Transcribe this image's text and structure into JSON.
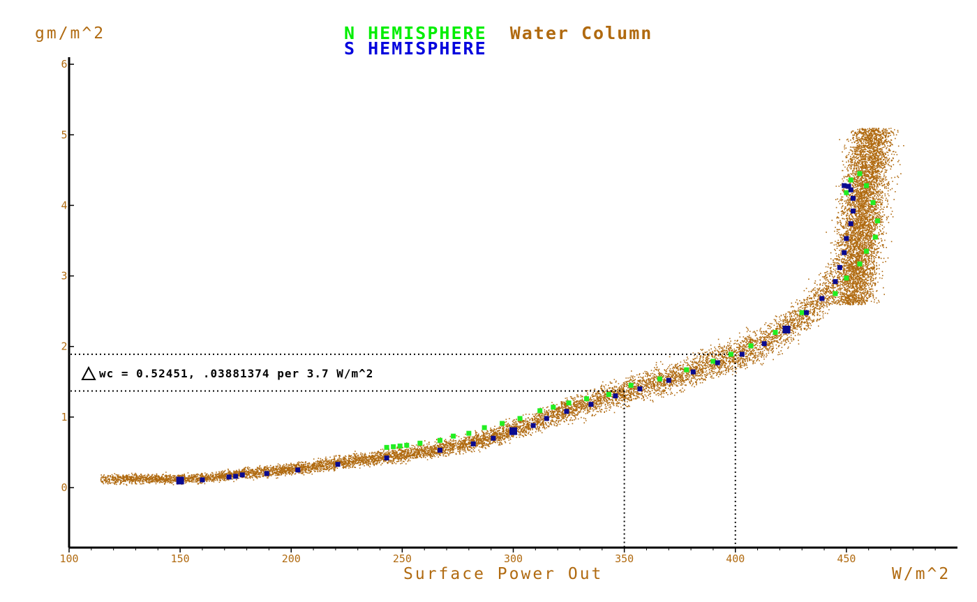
{
  "chart_data": {
    "type": "scatter",
    "title_parts": [
      {
        "text": "N HEMISPHERE",
        "color": "#00ee00"
      },
      {
        "text": "Water Column",
        "color": "#b06a10"
      }
    ],
    "subtitle": {
      "text": "S HEMISPHERE",
      "color": "#0000dd"
    },
    "ylabel": "gm/m^2",
    "xlabel": "Surface Power Out",
    "xunit": "W/m^2",
    "xlim": [
      100,
      500
    ],
    "ylim": [
      -0.85,
      6.1
    ],
    "xticks": [
      100,
      150,
      200,
      250,
      300,
      350,
      400,
      450
    ],
    "yticks": [
      0,
      1,
      2,
      3,
      4,
      5,
      6
    ],
    "grid": false,
    "annotation": {
      "text": "wc = 0.52451, .03881374 per 3.7 W/m^2",
      "symbol": "triangle",
      "hlines_y": [
        1.37,
        1.89
      ],
      "vlines_x": [
        350,
        400
      ]
    },
    "colors": {
      "cloud": "#b06a10",
      "north": "#22ee22",
      "south": "#0a0a90",
      "overlap": "#111111"
    },
    "series": [
      {
        "name": "N HEMISPHERE",
        "color": "#22ee22",
        "x": [
          243,
          246,
          249,
          252,
          258,
          267,
          273,
          280,
          287,
          295,
          303,
          312,
          318,
          325,
          333,
          343,
          353,
          366,
          378,
          390,
          398,
          407,
          418,
          430,
          445,
          450,
          456,
          459,
          463,
          464,
          462,
          459,
          456,
          452,
          450
        ],
        "y": [
          0.57,
          0.58,
          0.59,
          0.6,
          0.63,
          0.67,
          0.73,
          0.77,
          0.85,
          0.91,
          0.98,
          1.09,
          1.14,
          1.2,
          1.26,
          1.32,
          1.45,
          1.54,
          1.67,
          1.79,
          1.89,
          2.01,
          2.2,
          2.48,
          2.75,
          2.97,
          3.17,
          3.35,
          3.55,
          3.78,
          4.04,
          4.28,
          4.45,
          4.36,
          4.18
        ]
      },
      {
        "name": "S HEMISPHERE",
        "color": "#0a0a90",
        "x": [
          150,
          160,
          172,
          175,
          178,
          189,
          203,
          221,
          243,
          267,
          282,
          291,
          300,
          309,
          315,
          324,
          335,
          346,
          357,
          370,
          381,
          392,
          403,
          413,
          423,
          432,
          439,
          445,
          447,
          449,
          450,
          452,
          453,
          453,
          452,
          451,
          449
        ],
        "y": [
          0.1,
          0.11,
          0.15,
          0.16,
          0.18,
          0.2,
          0.25,
          0.33,
          0.42,
          0.53,
          0.62,
          0.7,
          0.8,
          0.88,
          0.98,
          1.08,
          1.18,
          1.3,
          1.4,
          1.52,
          1.64,
          1.77,
          1.89,
          2.04,
          2.24,
          2.48,
          2.68,
          2.92,
          3.12,
          3.33,
          3.53,
          3.74,
          3.92,
          4.1,
          4.22,
          4.27,
          4.28
        ]
      }
    ]
  }
}
